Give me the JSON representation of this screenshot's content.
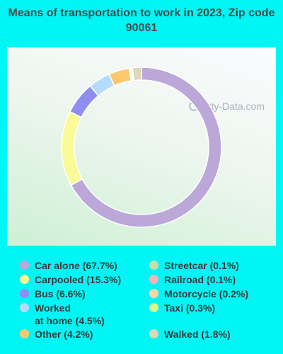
{
  "title": "Means of transportation to work in 2023, Zip code 90061",
  "watermark": "City-Data.com",
  "chart_data": {
    "type": "pie",
    "subtype": "donut",
    "title": "Means of transportation to work in 2023, Zip code 90061",
    "series": [
      {
        "name": "Car alone",
        "value": 67.7,
        "label": "Car alone (67.7%)",
        "color": "#bba8d9"
      },
      {
        "name": "Carpooled",
        "value": 15.3,
        "label": "Carpooled (15.3%)",
        "color": "#fafa96"
      },
      {
        "name": "Bus",
        "value": 6.6,
        "label": "Bus (6.6%)",
        "color": "#8e8ef0"
      },
      {
        "name": "Worked at home",
        "value": 4.5,
        "label_line1": "Worked",
        "label_line2": "at home (4.5%)",
        "color": "#b4dcfa"
      },
      {
        "name": "Other",
        "value": 4.2,
        "label": "Other (4.2%)",
        "color": "#fcc870"
      },
      {
        "name": "Streetcar",
        "value": 0.1,
        "label": "Streetcar (0.1%)",
        "color": "#c8dcaa"
      },
      {
        "name": "Railroad",
        "value": 0.1,
        "label": "Railroad (0.1%)",
        "color": "#f4b4b4"
      },
      {
        "name": "Motorcycle",
        "value": 0.2,
        "label": "Motorcycle (0.2%)",
        "color": "#fcd4a8"
      },
      {
        "name": "Taxi",
        "value": 0.3,
        "label": "Taxi (0.3%)",
        "color": "#d8f890"
      },
      {
        "name": "Walked",
        "value": 1.8,
        "label": "Walked (1.8%)",
        "color": "#e0d6b8"
      }
    ],
    "legend_position": "bottom"
  }
}
